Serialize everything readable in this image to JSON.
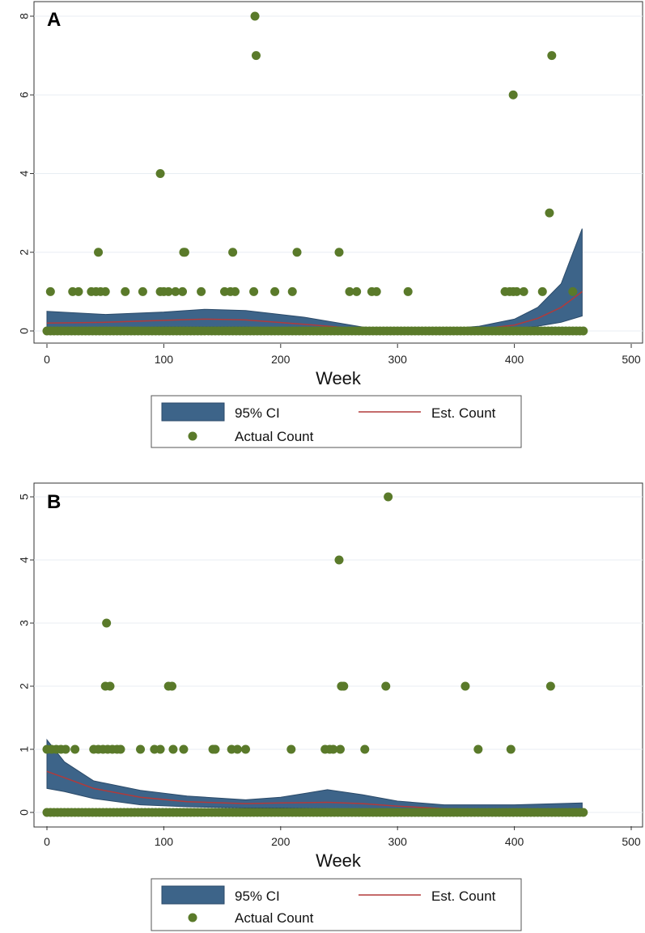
{
  "colors": {
    "ci_fill": "#3d6489",
    "ci_stroke": "#2b4a69",
    "estimate_line": "#b23a3a",
    "points": "#5a7a2a",
    "grid": "#e8eef3",
    "axis": "#333333"
  },
  "chart_data": [
    {
      "type": "scatter",
      "panel_label": "A",
      "xlabel": "Week",
      "ylabel": "",
      "xlim": [
        0,
        500
      ],
      "ylim": [
        0,
        8
      ],
      "xticks": [
        "0",
        "100",
        "200",
        "300",
        "400",
        "500"
      ],
      "yticks": [
        "0",
        "2",
        "4",
        "6",
        "8"
      ],
      "grid": "horizontal",
      "legend": {
        "position": "bottom",
        "items": [
          "95% CI",
          "Est. Count",
          "Actual Count"
        ]
      },
      "series": [
        {
          "name": "95% CI",
          "kind": "band",
          "x": [
            0,
            50,
            100,
            135,
            170,
            220,
            270,
            300,
            340,
            370,
            400,
            420,
            440,
            458
          ],
          "lower": [
            0.05,
            0.08,
            0.1,
            0.1,
            0.1,
            0.05,
            0.02,
            0.01,
            0.01,
            0.02,
            0.06,
            0.12,
            0.22,
            0.38
          ],
          "upper": [
            0.5,
            0.42,
            0.48,
            0.55,
            0.52,
            0.35,
            0.1,
            0.04,
            0.05,
            0.12,
            0.3,
            0.6,
            1.2,
            2.6
          ]
        },
        {
          "name": "Est. Count",
          "kind": "line",
          "x": [
            0,
            50,
            100,
            135,
            170,
            220,
            270,
            300,
            340,
            370,
            400,
            420,
            440,
            458
          ],
          "y": [
            0.2,
            0.22,
            0.27,
            0.3,
            0.28,
            0.17,
            0.05,
            0.02,
            0.02,
            0.05,
            0.15,
            0.32,
            0.6,
            1.0
          ]
        },
        {
          "name": "Actual Count",
          "kind": "points",
          "points": [
            [
              3,
              1
            ],
            [
              22,
              1
            ],
            [
              27,
              1
            ],
            [
              38,
              1
            ],
            [
              42,
              1
            ],
            [
              44,
              2
            ],
            [
              46,
              1
            ],
            [
              50,
              1
            ],
            [
              67,
              1
            ],
            [
              82,
              1
            ],
            [
              97,
              1
            ],
            [
              97,
              4
            ],
            [
              100,
              1
            ],
            [
              104,
              1
            ],
            [
              110,
              1
            ],
            [
              116,
              1
            ],
            [
              117,
              2
            ],
            [
              118,
              2
            ],
            [
              132,
              1
            ],
            [
              152,
              1
            ],
            [
              157,
              1
            ],
            [
              159,
              2
            ],
            [
              161,
              1
            ],
            [
              177,
              1
            ],
            [
              178,
              8
            ],
            [
              179,
              7
            ],
            [
              195,
              1
            ],
            [
              210,
              1
            ],
            [
              214,
              2
            ],
            [
              250,
              2
            ],
            [
              259,
              1
            ],
            [
              265,
              1
            ],
            [
              278,
              1
            ],
            [
              282,
              1
            ],
            [
              309,
              1
            ],
            [
              392,
              1
            ],
            [
              396,
              1
            ],
            [
              399,
              1
            ],
            [
              399,
              6
            ],
            [
              402,
              1
            ],
            [
              408,
              1
            ],
            [
              424,
              1
            ],
            [
              430,
              3
            ],
            [
              432,
              7
            ],
            [
              450,
              1
            ]
          ],
          "zeros_from": 0,
          "zeros_to": 460,
          "zeros_step": 3
        }
      ]
    },
    {
      "type": "scatter",
      "panel_label": "B",
      "xlabel": "Week",
      "ylabel": "",
      "xlim": [
        0,
        500
      ],
      "ylim": [
        0,
        5
      ],
      "xticks": [
        "0",
        "100",
        "200",
        "300",
        "400",
        "500"
      ],
      "yticks": [
        "0",
        "1",
        "2",
        "3",
        "4",
        "5"
      ],
      "grid": "horizontal",
      "legend": {
        "position": "bottom",
        "items": [
          "95% CI",
          "Est. Count",
          "Actual Count"
        ]
      },
      "series": [
        {
          "name": "95% CI",
          "kind": "band",
          "x": [
            0,
            15,
            40,
            80,
            120,
            170,
            200,
            240,
            270,
            300,
            340,
            400,
            458
          ],
          "lower": [
            0.38,
            0.33,
            0.22,
            0.12,
            0.09,
            0.07,
            0.07,
            0.06,
            0.05,
            0.04,
            0.03,
            0.02,
            0.01
          ],
          "upper": [
            1.15,
            0.8,
            0.5,
            0.35,
            0.26,
            0.2,
            0.24,
            0.36,
            0.28,
            0.18,
            0.12,
            0.12,
            0.15
          ]
        },
        {
          "name": "Est. Count",
          "kind": "line",
          "x": [
            0,
            15,
            40,
            80,
            120,
            170,
            200,
            240,
            270,
            300,
            340,
            400,
            458
          ],
          "y": [
            0.65,
            0.55,
            0.38,
            0.24,
            0.17,
            0.14,
            0.15,
            0.16,
            0.14,
            0.1,
            0.06,
            0.04,
            0.05
          ]
        },
        {
          "name": "Actual Count",
          "kind": "points",
          "points": [
            [
              0,
              1
            ],
            [
              4,
              1
            ],
            [
              8,
              1
            ],
            [
              12,
              1
            ],
            [
              16,
              1
            ],
            [
              24,
              1
            ],
            [
              40,
              1
            ],
            [
              44,
              1
            ],
            [
              48,
              1
            ],
            [
              50,
              2
            ],
            [
              51,
              3
            ],
            [
              52,
              1
            ],
            [
              54,
              2
            ],
            [
              56,
              1
            ],
            [
              60,
              1
            ],
            [
              63,
              1
            ],
            [
              80,
              1
            ],
            [
              92,
              1
            ],
            [
              97,
              1
            ],
            [
              104,
              2
            ],
            [
              107,
              2
            ],
            [
              108,
              1
            ],
            [
              117,
              1
            ],
            [
              142,
              1
            ],
            [
              144,
              1
            ],
            [
              158,
              1
            ],
            [
              163,
              1
            ],
            [
              170,
              1
            ],
            [
              209,
              1
            ],
            [
              238,
              1
            ],
            [
              242,
              1
            ],
            [
              245,
              1
            ],
            [
              250,
              4
            ],
            [
              251,
              1
            ],
            [
              252,
              2
            ],
            [
              254,
              2
            ],
            [
              272,
              1
            ],
            [
              290,
              2
            ],
            [
              292,
              5
            ],
            [
              358,
              2
            ],
            [
              369,
              1
            ],
            [
              397,
              1
            ],
            [
              431,
              2
            ]
          ],
          "zeros_from": 0,
          "zeros_to": 460,
          "zeros_step": 3
        }
      ]
    }
  ]
}
